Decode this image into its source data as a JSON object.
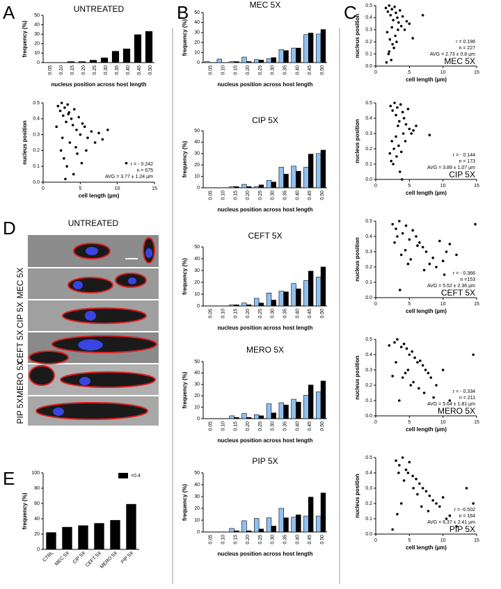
{
  "panel_labels": [
    "A",
    "B",
    "C",
    "D",
    "E"
  ],
  "micrographs": {
    "title": "UNTREATED",
    "rows": [
      "MEC 5X",
      "CIP 5X",
      "CEFT 5X",
      "MERO 5X",
      "PIP 5X"
    ]
  },
  "chart_data": [
    {
      "type": "bar",
      "title": "UNTREATED",
      "categories": [
        "0.05",
        "0.10",
        "0.15",
        "0.20",
        "0.25",
        "0.30",
        "0.35",
        "0.40",
        "0.45",
        "0.50"
      ],
      "values": [
        0,
        0,
        1,
        1,
        2.5,
        5,
        12,
        14.5,
        29.5,
        33
      ],
      "color": "#000000",
      "ylim": [
        0,
        50
      ],
      "yticks": [
        0,
        10,
        20,
        30,
        40,
        50
      ],
      "x_label": "nucleus position across host length",
      "y_label": "frequency (%)"
    },
    {
      "type": "scatter",
      "x": [
        2.0,
        2.3,
        2.5,
        2.7,
        2.9,
        3.1,
        3.3,
        3.5,
        3.8,
        4.0,
        4.2,
        4.5,
        4.8,
        5.0,
        5.3,
        5.6,
        6.0,
        6.5,
        7.0,
        7.5,
        8.0,
        8.7,
        2.4,
        2.8,
        3.2,
        3.6,
        4.1,
        4.6,
        5.2,
        1.8,
        3.0,
        2.6,
        4.4,
        5.8,
        3.4,
        11.2
      ],
      "values": [
        0.48,
        0.45,
        0.5,
        0.42,
        0.47,
        0.38,
        0.49,
        0.44,
        0.4,
        0.36,
        0.46,
        0.33,
        0.41,
        0.3,
        0.37,
        0.35,
        0.28,
        0.32,
        0.25,
        0.31,
        0.27,
        0.33,
        0.2,
        0.15,
        0.1,
        0.25,
        0.05,
        0.18,
        0.12,
        0.35,
        0.02,
        0.28,
        0.22,
        0.2,
        0.43,
        0.12
      ],
      "color": "#000000",
      "xlim": [
        0,
        15
      ],
      "xticks": [
        0,
        5,
        10,
        15
      ],
      "ylim": [
        0,
        0.5
      ],
      "yticks": [
        {
          "value": 0,
          "label": "0.0"
        },
        0.1,
        0.2,
        0.3,
        0.4,
        0.5
      ],
      "x_label": "cell length (µm)",
      "y_label": "nucleus position",
      "annotations": [
        "r = - 0.242",
        "n = 675",
        "AVG = 3.77 ± 1.24 µm"
      ]
    },
    {
      "type": "bar",
      "title": "MEC 5X",
      "categories": [
        "0.05",
        "0.10",
        "0.15",
        "0.20",
        "0.25",
        "0.30",
        "0.35",
        "0.40",
        "0.45",
        "0.50"
      ],
      "series": [
        {
          "color": "#8ec1f2",
          "values": [
            1,
            3.5,
            1,
            5.5,
            3,
            4,
            13,
            14.5,
            28,
            28.5
          ]
        },
        {
          "color": "#000000",
          "values": [
            0,
            0,
            1,
            1,
            2.5,
            5,
            12,
            14.5,
            29.5,
            33
          ]
        }
      ],
      "ylim": [
        0,
        50
      ],
      "yticks": [
        0,
        10,
        20,
        30,
        40,
        50
      ],
      "x_label": "nucleus position across host length",
      "y_label": "frequency (%)"
    },
    {
      "type": "bar",
      "title": "CIP 5X",
      "categories": [
        "0.05",
        "0.10",
        "0.15",
        "0.20",
        "0.25",
        "0.30",
        "0.35",
        "0.40",
        "0.45",
        "0.50"
      ],
      "series": [
        {
          "color": "#8ec1f2",
          "values": [
            0,
            0,
            1,
            3,
            1,
            6.5,
            18,
            19,
            18,
            30
          ]
        },
        {
          "color": "#000000",
          "values": [
            0,
            0,
            1,
            1,
            2.5,
            5,
            12,
            14.5,
            29.5,
            33
          ]
        }
      ],
      "ylim": [
        0,
        50
      ],
      "yticks": [
        0,
        10,
        20,
        30,
        40,
        50
      ],
      "x_label": "nucleus position across host length",
      "y_label": "frequency (%)"
    },
    {
      "type": "bar",
      "title": "CEFT 5X",
      "categories": [
        "0.05",
        "0.10",
        "0.15",
        "0.20",
        "0.25",
        "0.30",
        "0.35",
        "0.40",
        "0.45",
        "0.50"
      ],
      "series": [
        {
          "color": "#8ec1f2",
          "values": [
            0,
            0,
            1,
            2.5,
            6.5,
            11,
            12.5,
            19,
            21.5,
            24.5
          ]
        },
        {
          "color": "#000000",
          "values": [
            0,
            0,
            1,
            1,
            2.5,
            5,
            12,
            14.5,
            29.5,
            33
          ]
        }
      ],
      "ylim": [
        0,
        50
      ],
      "yticks": [
        0,
        10,
        20,
        30,
        40,
        50
      ],
      "x_label": "nucleus position across host length",
      "y_label": "frequency (%)"
    },
    {
      "type": "bar",
      "title": "MERO 5X",
      "categories": [
        "0.05",
        "0.10",
        "0.15",
        "0.20",
        "0.25",
        "0.30",
        "0.35",
        "0.40",
        "0.45",
        "0.50"
      ],
      "series": [
        {
          "color": "#8ec1f2",
          "values": [
            0,
            0,
            2.5,
            4.5,
            3.5,
            13,
            14,
            17,
            20.5,
            23.5
          ]
        },
        {
          "color": "#000000",
          "values": [
            0,
            0,
            1,
            1,
            2.5,
            5,
            12,
            14.5,
            29.5,
            33
          ]
        }
      ],
      "ylim": [
        0,
        50
      ],
      "yticks": [
        0,
        10,
        20,
        30,
        40,
        50
      ],
      "x_label": "nucleus position across host length",
      "y_label": "frequency (%)"
    },
    {
      "type": "bar",
      "title": "PIP 5X",
      "categories": [
        "0.05",
        "0.10",
        "0.15",
        "0.20",
        "0.25",
        "0.30",
        "0.35",
        "0.40",
        "0.45",
        "0.50"
      ],
      "series": [
        {
          "color": "#8ec1f2",
          "values": [
            0,
            0,
            3,
            9.5,
            11.5,
            12,
            20,
            12.5,
            13.5,
            13.5
          ]
        },
        {
          "color": "#000000",
          "values": [
            0,
            0,
            1,
            1,
            2.5,
            5,
            12,
            14.5,
            29.5,
            33
          ]
        }
      ],
      "ylim": [
        0,
        50
      ],
      "yticks": [
        0,
        10,
        20,
        30,
        40,
        50
      ],
      "x_label": "nucleus position across host length",
      "y_label": "frequency (%)"
    },
    {
      "type": "scatter",
      "x": [
        1.5,
        1.8,
        2.0,
        2.2,
        2.4,
        2.6,
        2.8,
        3.0,
        3.2,
        3.4,
        3.6,
        3.8,
        4.0,
        4.3,
        4.6,
        5.0,
        7.0,
        1.7,
        2.1,
        2.5,
        2.9,
        3.3,
        1.9,
        2.3,
        2.7,
        3.1,
        1.6,
        2.0,
        2.4,
        5.5
      ],
      "values": [
        0.48,
        0.45,
        0.5,
        0.42,
        0.47,
        0.38,
        0.49,
        0.44,
        0.4,
        0.36,
        0.46,
        0.33,
        0.41,
        0.3,
        0.37,
        0.35,
        0.42,
        0.28,
        0.22,
        0.18,
        0.25,
        0.3,
        0.1,
        0.05,
        0.15,
        0.2,
        0.03,
        0.12,
        0.32,
        0.23
      ],
      "color": "#000000",
      "xlim": [
        0,
        15
      ],
      "xticks": [
        0,
        5,
        10,
        15
      ],
      "ylim": [
        0,
        0.5
      ],
      "yticks": [
        {
          "value": 0,
          "label": "0.0"
        },
        0.1,
        0.2,
        0.3,
        0.4,
        0.5
      ],
      "x_label": "cell length (µm)",
      "y_label": "nucleus position",
      "annotations": [
        "r = 0.196",
        "n = 227",
        "AVG = 2.73 ± 0.8 µm"
      ],
      "label": "MEC 5X"
    },
    {
      "type": "scatter",
      "x": [
        2.2,
        2.5,
        2.8,
        3.0,
        3.2,
        3.5,
        3.7,
        4.0,
        4.2,
        4.5,
        4.8,
        5.0,
        5.3,
        5.6,
        6.0,
        8.0,
        2.4,
        2.7,
        3.1,
        3.4,
        3.8,
        4.1,
        2.3,
        2.6,
        3.0,
        3.3,
        3.6,
        4.4,
        3.9,
        2.1
      ],
      "values": [
        0.48,
        0.45,
        0.5,
        0.42,
        0.47,
        0.38,
        0.49,
        0.44,
        0.4,
        0.36,
        0.46,
        0.33,
        0.3,
        0.32,
        0.35,
        0.29,
        0.25,
        0.2,
        0.15,
        0.22,
        0.18,
        0.3,
        0.12,
        0.1,
        0.28,
        0.35,
        0.05,
        0.25,
        0.0,
        0.17
      ],
      "color": "#000000",
      "xlim": [
        0,
        15
      ],
      "xticks": [
        0,
        5,
        10,
        15
      ],
      "ylim": [
        0,
        0.5
      ],
      "yticks": [
        {
          "value": 0,
          "label": "0.0"
        },
        0.1,
        0.2,
        0.3,
        0.4,
        0.5
      ],
      "x_label": "cell length (µm)",
      "y_label": "nucleus position",
      "annotations": [
        "r = - 0.144",
        "n = 173",
        "AVG = 3.89 ± 1.07 µm"
      ],
      "label": "CIP 5X"
    },
    {
      "type": "scatter",
      "x": [
        2.5,
        3.0,
        3.5,
        4.0,
        4.5,
        5.0,
        5.5,
        6.0,
        6.5,
        7.0,
        7.5,
        8.0,
        8.5,
        9.0,
        9.5,
        10.0,
        10.5,
        11.0,
        12.0,
        14.8,
        3.2,
        3.8,
        4.4,
        5.2,
        6.2,
        7.2,
        3.6,
        4.8,
        2.8,
        10.2
      ],
      "values": [
        0.48,
        0.45,
        0.5,
        0.42,
        0.47,
        0.38,
        0.44,
        0.4,
        0.36,
        0.33,
        0.3,
        0.22,
        0.26,
        0.2,
        0.37,
        0.24,
        0.3,
        0.35,
        0.28,
        0.48,
        0.4,
        0.28,
        0.31,
        0.25,
        0.34,
        0.18,
        0.05,
        0.22,
        0.36,
        0.15
      ],
      "color": "#000000",
      "xlim": [
        0,
        15
      ],
      "xticks": [
        0,
        5,
        10,
        15
      ],
      "ylim": [
        0,
        0.5
      ],
      "yticks": [
        {
          "value": 0,
          "label": "0.0"
        },
        0.1,
        0.2,
        0.3,
        0.4,
        0.5
      ],
      "x_label": "cell length (µm)",
      "y_label": "nucleus position",
      "annotations": [
        "r = - 0.366",
        "n =153",
        "AVG = 5.52 ± 2.36 µm"
      ],
      "label": "CEFT 5X"
    },
    {
      "type": "scatter",
      "x": [
        2.0,
        2.8,
        3.2,
        3.8,
        4.2,
        4.6,
        5.0,
        5.4,
        5.8,
        6.2,
        6.6,
        7.0,
        7.4,
        7.8,
        8.2,
        9.0,
        10.0,
        11.0,
        14.5,
        3.5,
        4.0,
        4.8,
        5.6,
        6.4,
        7.2,
        3.0,
        4.4,
        5.2,
        2.5,
        8.6
      ],
      "values": [
        0.46,
        0.48,
        0.5,
        0.45,
        0.47,
        0.44,
        0.4,
        0.42,
        0.38,
        0.35,
        0.36,
        0.33,
        0.3,
        0.28,
        0.25,
        0.2,
        0.3,
        0.1,
        0.4,
        0.1,
        0.25,
        0.3,
        0.22,
        0.18,
        0.15,
        0.35,
        0.28,
        0.2,
        0.26,
        0.12
      ],
      "color": "#000000",
      "xlim": [
        0,
        15
      ],
      "xticks": [
        0,
        5,
        10,
        15
      ],
      "ylim": [
        0,
        0.5
      ],
      "yticks": [
        {
          "value": 0,
          "label": "0.0"
        },
        0.1,
        0.2,
        0.3,
        0.4,
        0.5
      ],
      "x_label": "cell length (µm)",
      "y_label": "nucleus position",
      "annotations": [
        "r = - 0.334",
        "n = 211",
        "AVG = 5.64 ± 1.81 µm"
      ],
      "label": "MERO 5X"
    },
    {
      "type": "scatter",
      "x": [
        3.0,
        3.5,
        4.0,
        4.5,
        5.0,
        5.5,
        6.0,
        6.5,
        7.0,
        7.5,
        8.0,
        8.5,
        9.0,
        9.5,
        10.0,
        10.5,
        11.0,
        12.0,
        13.5,
        14.5,
        2.5,
        3.2,
        3.8,
        4.2,
        4.8,
        5.6,
        6.2,
        6.8,
        3.4,
        7.8
      ],
      "values": [
        0.48,
        0.45,
        0.5,
        0.42,
        0.47,
        0.38,
        0.36,
        0.33,
        0.3,
        0.28,
        0.25,
        0.22,
        0.2,
        0.18,
        0.24,
        0.1,
        0.12,
        0.05,
        0.3,
        0.2,
        0.03,
        0.13,
        0.2,
        0.35,
        0.4,
        0.3,
        0.26,
        0.18,
        0.4,
        0.15
      ],
      "color": "#000000",
      "xlim": [
        0,
        15
      ],
      "xticks": [
        0,
        5,
        10,
        15
      ],
      "ylim": [
        0,
        0.5
      ],
      "yticks": [
        {
          "value": 0,
          "label": "0.0"
        },
        0.1,
        0.2,
        0.3,
        0.4,
        0.5
      ],
      "x_label": "cell length (µm)",
      "y_label": "nucleus position",
      "annotations": [
        "r = -0.502",
        "n = 164",
        "AVG = 6.37 ± 2.41 µm"
      ],
      "label": "PIP 5X"
    },
    {
      "type": "bar",
      "categories": [
        "CTRL",
        "MEC 5X",
        "CIP 5X",
        "CEFT 5X",
        "MERO 5X",
        "PIP 5X"
      ],
      "series": [
        {
          "name": "<0.4",
          "color": "#000000",
          "values": [
            22,
            29,
            31,
            34,
            38,
            59
          ]
        }
      ],
      "ylim": [
        0,
        100
      ],
      "yticks": [
        0,
        20,
        40,
        60,
        80,
        100
      ],
      "y_label": "frequency (%)",
      "legend": "upper right"
    }
  ]
}
